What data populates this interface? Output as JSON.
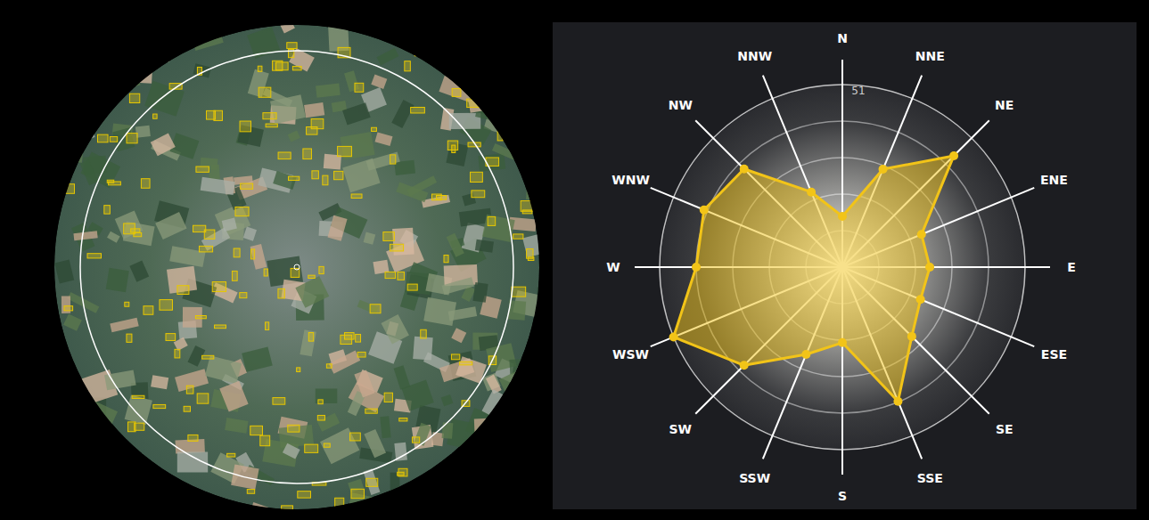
{
  "chart_data": {
    "type": "radar",
    "categories": [
      "N",
      "NNE",
      "NE",
      "ENE",
      "E",
      "ESE",
      "SE",
      "SSE",
      "S",
      "SSW",
      "SW",
      "WSW",
      "W",
      "WNW",
      "NW",
      "NNW"
    ],
    "values": [
      14.2,
      29.6,
      44,
      23.9,
      24.4,
      23.6,
      27.4,
      40.6,
      21.1,
      26.4,
      38.8,
      51,
      40.8,
      41.8,
      38.8,
      22.7
    ],
    "color": "#f2c418",
    "ylim": [
      0,
      51
    ],
    "yticks": [
      51
    ],
    "grid": true,
    "marker": "circle"
  }
}
